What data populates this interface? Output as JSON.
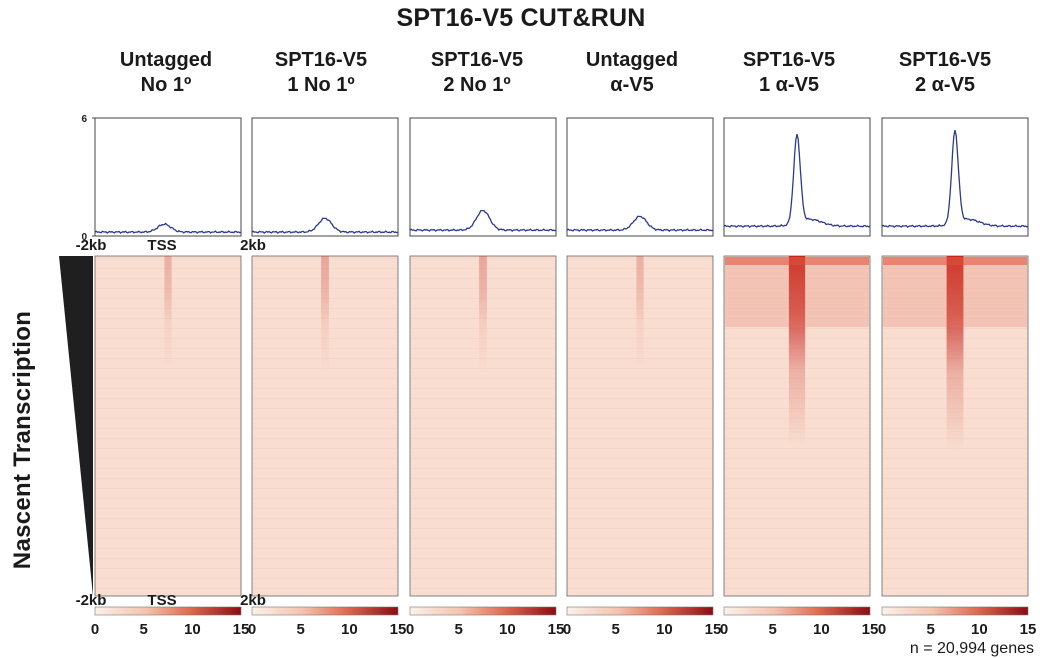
{
  "title": "SPT16-V5 CUT&RUN",
  "y_axis_label": "Nascent Transcription",
  "gene_count_label": "n = 20,994 genes",
  "profile_axis": {
    "ticks": [
      "6",
      "0"
    ],
    "ymin": 0,
    "ymax": 6
  },
  "position_axis": {
    "left": "-2kb",
    "center": "TSS",
    "right": "2kb"
  },
  "colorbar": {
    "ticks": [
      "0",
      "5",
      "10",
      "15"
    ],
    "min": 0,
    "max": 15,
    "low_color": "#fbeee6",
    "high_color": "#8a0c12"
  },
  "heatmap_base_color": "#f8ddd0",
  "line_color": "#2b3990",
  "chart_data": {
    "type": "line",
    "title": "SPT16-V5 CUT&RUN",
    "xlabel": "",
    "ylabel": "",
    "x": [
      -2,
      2
    ],
    "ylim": [
      0,
      6
    ],
    "series": [
      {
        "name": "Untagged No 1°",
        "line1": "Untagged",
        "line2": "No 1º",
        "baseline": 0.2,
        "peak": 0.6,
        "peak_x": -0.1,
        "heatmap_intensity": 0.1
      },
      {
        "name": "SPT16-V5 1 No 1°",
        "line1": "SPT16-V5",
        "line2": "1 No 1º",
        "baseline": 0.2,
        "peak": 0.9,
        "peak_x": 0.0,
        "heatmap_intensity": 0.15
      },
      {
        "name": "SPT16-V5 2 No 1°",
        "line1": "SPT16-V5",
        "line2": "2 No 1º",
        "baseline": 0.3,
        "peak": 1.3,
        "peak_x": 0.0,
        "heatmap_intensity": 0.15
      },
      {
        "name": "Untagged α-V5",
        "line1": "Untagged",
        "line2": "α-V5",
        "baseline": 0.3,
        "peak": 1.0,
        "peak_x": 0.0,
        "heatmap_intensity": 0.1
      },
      {
        "name": "SPT16-V5 1 α-V5",
        "line1": "SPT16-V5",
        "line2": "1 α-V5",
        "baseline": 0.5,
        "peak": 5.0,
        "peak_x": 0.0,
        "heatmap_intensity": 0.85
      },
      {
        "name": "SPT16-V5 2 α-V5",
        "line1": "SPT16-V5",
        "line2": "2 α-V5",
        "baseline": 0.5,
        "peak": 5.2,
        "peak_x": 0.0,
        "heatmap_intensity": 0.9
      }
    ]
  }
}
